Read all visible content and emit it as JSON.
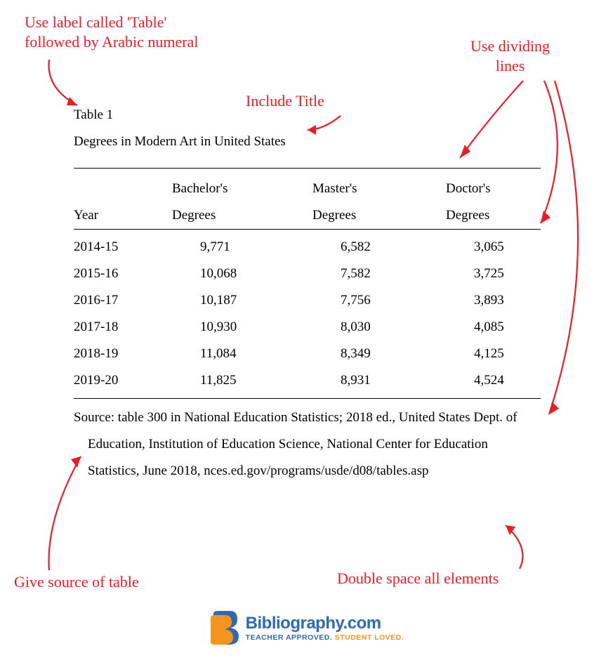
{
  "annotations": {
    "label_note": "Use label called 'Table'\nfollowed by Arabic numeral",
    "title_note": "Include Title",
    "dividing_note": "Use dividing\nlines",
    "source_note": "Give source of table",
    "double_space_note": "Double space all elements"
  },
  "table": {
    "label": "Table 1",
    "title": "Degrees in Modern Art in United States",
    "columns": [
      "Year",
      "Bachelor's Degrees",
      "Master's Degrees",
      "Doctor's Degrees"
    ],
    "column_line1": [
      "",
      "Bachelor's",
      "Master's",
      "Doctor's"
    ],
    "column_line2": [
      "Year",
      "Degrees",
      "Degrees",
      "Degrees"
    ],
    "rows": [
      [
        "2014-15",
        "9,771",
        "6,582",
        "3,065"
      ],
      [
        "2015-16",
        "10,068",
        "7,582",
        "3,725"
      ],
      [
        "2016-17",
        "10,187",
        "7,756",
        "3,893"
      ],
      [
        "2017-18",
        "10,930",
        "8,030",
        "4,085"
      ],
      [
        "2018-19",
        "11,084",
        "8,349",
        "4,125"
      ],
      [
        "2019-20",
        "11,825",
        "8,931",
        "4,524"
      ]
    ],
    "source": "Source: table 300 in National Education Statistics; 2018 ed., United States Dept. of Education, Institution of Education Science, National Center for Education Statistics, June 2018, nces.ed.gov/programs/usde/d08/tables.asp",
    "colors": {
      "text": "#000000",
      "annotation": "#ed1c24",
      "rule": "#000000",
      "background": "#ffffff"
    },
    "font": {
      "body_family": "Times New Roman",
      "body_size_pt": 14,
      "annotation_family": "handwritten",
      "annotation_size_pt": 17
    },
    "line_height": 2.0
  },
  "logo": {
    "name": "Bibliography.com",
    "tagline_1": "TEACHER APPROVED. ",
    "tagline_2": "STUDENT LOVED.",
    "colors": {
      "blue": "#2c6bb3",
      "orange": "#f7941d"
    }
  }
}
